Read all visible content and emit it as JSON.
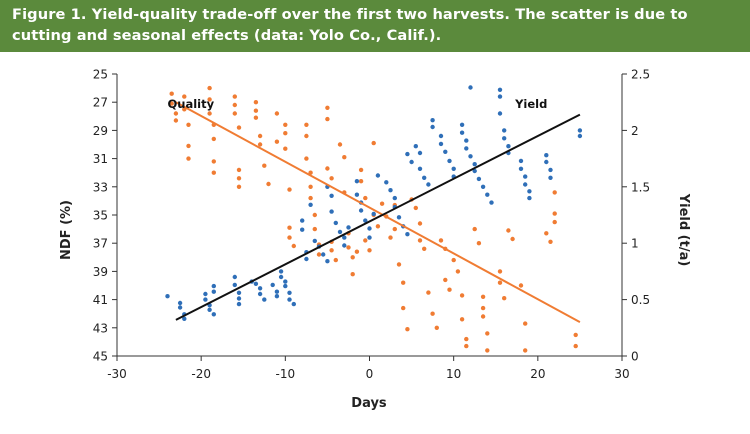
{
  "figure": {
    "title": "Figure 1. Yield-quality trade-off over the first two harvests. The scatter is due to cutting and seasonal effects (data: Yolo Co., Calif.).",
    "header_color": "#5b8a3c"
  },
  "chart_data": {
    "type": "scatter",
    "title": "Figure 1. Yield-quality trade-off over the first two harvests. The scatter is due to cutting and seasonal effects (data: Yolo Co., Calif.).",
    "xlabel": "Days",
    "ylabel_left": "NDF (%)",
    "ylabel_right": "Yield (t/a)",
    "xlim": [
      -30,
      30
    ],
    "ylim_left": [
      45,
      25
    ],
    "ylim_right": [
      0,
      2.5
    ],
    "xticks": [
      "-30",
      "-20",
      "-10",
      "0",
      "10",
      "20",
      "30"
    ],
    "yticks_left": [
      "25",
      "27",
      "29",
      "31",
      "33",
      "35",
      "37",
      "39",
      "41",
      "43",
      "45"
    ],
    "yticks_right": [
      "0",
      "0.5",
      "1",
      "1.5",
      "2",
      "2.5"
    ],
    "grid": false,
    "series": [
      {
        "name": "Quality",
        "axis": "left",
        "color": "#f07c33",
        "trend": {
          "x": [
            -23,
            25
          ],
          "y": [
            27.0,
            42.6
          ]
        },
        "points": [
          [
            -23.5,
            26.4
          ],
          [
            -23.5,
            27.1
          ],
          [
            -23.0,
            27.8
          ],
          [
            -23.0,
            28.3
          ],
          [
            -22.0,
            26.6
          ],
          [
            -22.0,
            27.5
          ],
          [
            -21.5,
            28.6
          ],
          [
            -21.5,
            30.1
          ],
          [
            -21.5,
            31.0
          ],
          [
            -19.0,
            26.0
          ],
          [
            -19.0,
            26.8
          ],
          [
            -19.0,
            27.8
          ],
          [
            -18.5,
            28.6
          ],
          [
            -18.5,
            29.6
          ],
          [
            -18.5,
            31.2
          ],
          [
            -18.5,
            32.0
          ],
          [
            -16.0,
            26.6
          ],
          [
            -16.0,
            27.2
          ],
          [
            -16.0,
            27.8
          ],
          [
            -15.5,
            28.8
          ],
          [
            -15.5,
            31.8
          ],
          [
            -15.5,
            32.4
          ],
          [
            -15.5,
            33.0
          ],
          [
            -13.5,
            27.0
          ],
          [
            -13.5,
            27.6
          ],
          [
            -13.5,
            28.1
          ],
          [
            -13.0,
            29.4
          ],
          [
            -13.0,
            30.0
          ],
          [
            -12.5,
            31.5
          ],
          [
            -12.0,
            32.8
          ],
          [
            -11.0,
            27.8
          ],
          [
            -11.0,
            29.8
          ],
          [
            -10.0,
            28.6
          ],
          [
            -10.0,
            29.2
          ],
          [
            -10.0,
            30.3
          ],
          [
            -9.5,
            33.2
          ],
          [
            -9.5,
            35.9
          ],
          [
            -9.5,
            36.6
          ],
          [
            -9.0,
            37.2
          ],
          [
            -7.5,
            28.6
          ],
          [
            -7.5,
            29.4
          ],
          [
            -7.5,
            31.0
          ],
          [
            -7.0,
            32.0
          ],
          [
            -7.0,
            33.0
          ],
          [
            -7.0,
            33.8
          ],
          [
            -6.5,
            35.0
          ],
          [
            -6.5,
            36.0
          ],
          [
            -6.0,
            37.1
          ],
          [
            -6.0,
            37.8
          ],
          [
            -5.0,
            27.4
          ],
          [
            -5.0,
            28.2
          ],
          [
            -5.0,
            31.7
          ],
          [
            -4.5,
            32.4
          ],
          [
            -4.5,
            36.9
          ],
          [
            -4.5,
            37.5
          ],
          [
            -4.0,
            38.2
          ],
          [
            -3.5,
            30.0
          ],
          [
            -3.0,
            30.9
          ],
          [
            -3.0,
            33.4
          ],
          [
            -2.5,
            36.3
          ],
          [
            -2.5,
            37.3
          ],
          [
            -2.0,
            38.0
          ],
          [
            -2.0,
            39.2
          ],
          [
            -1.5,
            37.6
          ],
          [
            -1.0,
            31.8
          ],
          [
            -1.0,
            32.6
          ],
          [
            -0.5,
            33.8
          ],
          [
            -0.5,
            36.8
          ],
          [
            0.0,
            37.5
          ],
          [
            0.5,
            29.9
          ],
          [
            0.5,
            35.0
          ],
          [
            1.0,
            35.8
          ],
          [
            1.5,
            34.2
          ],
          [
            2.0,
            35.1
          ],
          [
            2.5,
            36.6
          ],
          [
            3.0,
            34.3
          ],
          [
            3.0,
            36.0
          ],
          [
            3.5,
            38.5
          ],
          [
            4.0,
            39.8
          ],
          [
            4.0,
            41.6
          ],
          [
            4.5,
            43.1
          ],
          [
            5.0,
            33.9
          ],
          [
            5.5,
            34.5
          ],
          [
            6.0,
            35.6
          ],
          [
            6.0,
            36.8
          ],
          [
            6.5,
            37.4
          ],
          [
            7.0,
            40.5
          ],
          [
            7.5,
            42.0
          ],
          [
            8.0,
            43.0
          ],
          [
            8.5,
            36.8
          ],
          [
            9.0,
            37.4
          ],
          [
            9.0,
            39.6
          ],
          [
            9.5,
            40.3
          ],
          [
            10.0,
            38.2
          ],
          [
            10.5,
            39.0
          ],
          [
            11.0,
            40.7
          ],
          [
            11.0,
            42.4
          ],
          [
            11.5,
            43.8
          ],
          [
            11.5,
            44.3
          ],
          [
            12.5,
            36.0
          ],
          [
            13.0,
            37.0
          ],
          [
            13.5,
            40.8
          ],
          [
            13.5,
            41.6
          ],
          [
            13.5,
            42.2
          ],
          [
            14.0,
            43.4
          ],
          [
            14.0,
            44.6
          ],
          [
            15.5,
            39.0
          ],
          [
            15.5,
            39.8
          ],
          [
            16.0,
            40.9
          ],
          [
            16.5,
            36.1
          ],
          [
            17.0,
            36.7
          ],
          [
            18.0,
            40.0
          ],
          [
            18.5,
            42.7
          ],
          [
            18.5,
            44.6
          ],
          [
            21.0,
            36.3
          ],
          [
            21.5,
            36.9
          ],
          [
            22.0,
            34.9
          ],
          [
            22.0,
            35.5
          ],
          [
            22.0,
            33.4
          ],
          [
            24.5,
            43.5
          ],
          [
            24.5,
            44.3
          ]
        ]
      },
      {
        "name": "Yield",
        "axis": "right",
        "color": "#2f6fb8",
        "trend": {
          "x": [
            -23,
            25
          ],
          "y": [
            0.32,
            2.14
          ]
        },
        "points": [
          [
            -24.0,
            0.53
          ],
          [
            -22.5,
            0.47
          ],
          [
            -22.5,
            0.43
          ],
          [
            -22.0,
            0.37
          ],
          [
            -22.0,
            0.33
          ],
          [
            -19.5,
            0.55
          ],
          [
            -19.5,
            0.5
          ],
          [
            -19.0,
            0.45
          ],
          [
            -19.0,
            0.41
          ],
          [
            -18.5,
            0.62
          ],
          [
            -18.5,
            0.57
          ],
          [
            -18.5,
            0.37
          ],
          [
            -16.0,
            0.7
          ],
          [
            -16.0,
            0.63
          ],
          [
            -15.5,
            0.56
          ],
          [
            -15.5,
            0.51
          ],
          [
            -15.5,
            0.46
          ],
          [
            -14.0,
            0.66
          ],
          [
            -13.5,
            0.64
          ],
          [
            -13.0,
            0.6
          ],
          [
            -13.0,
            0.55
          ],
          [
            -12.5,
            0.5
          ],
          [
            -11.5,
            0.63
          ],
          [
            -11.0,
            0.57
          ],
          [
            -11.0,
            0.53
          ],
          [
            -10.5,
            0.75
          ],
          [
            -10.5,
            0.7
          ],
          [
            -10.0,
            0.66
          ],
          [
            -10.0,
            0.62
          ],
          [
            -9.5,
            0.56
          ],
          [
            -9.5,
            0.5
          ],
          [
            -9.0,
            0.46
          ],
          [
            -8.0,
            1.2
          ],
          [
            -8.0,
            1.12
          ],
          [
            -7.5,
            0.92
          ],
          [
            -7.5,
            0.86
          ],
          [
            -7.0,
            1.34
          ],
          [
            -6.5,
            1.02
          ],
          [
            -6.0,
            0.97
          ],
          [
            -5.5,
            0.9
          ],
          [
            -5.0,
            0.84
          ],
          [
            -5.0,
            1.5
          ],
          [
            -4.5,
            1.42
          ],
          [
            -4.5,
            1.28
          ],
          [
            -4.0,
            1.18
          ],
          [
            -3.5,
            1.1
          ],
          [
            -3.0,
            1.05
          ],
          [
            -3.0,
            0.98
          ],
          [
            -2.5,
            1.14
          ],
          [
            -1.5,
            1.55
          ],
          [
            -1.5,
            1.43
          ],
          [
            -1.0,
            1.36
          ],
          [
            -1.0,
            1.29
          ],
          [
            -0.5,
            1.2
          ],
          [
            0.0,
            1.13
          ],
          [
            0.0,
            1.05
          ],
          [
            0.5,
            1.26
          ],
          [
            1.0,
            1.6
          ],
          [
            2.0,
            1.54
          ],
          [
            2.5,
            1.47
          ],
          [
            3.0,
            1.4
          ],
          [
            3.0,
            1.32
          ],
          [
            3.5,
            1.23
          ],
          [
            4.0,
            1.15
          ],
          [
            4.5,
            1.08
          ],
          [
            4.5,
            1.79
          ],
          [
            5.0,
            1.72
          ],
          [
            5.5,
            1.86
          ],
          [
            6.0,
            1.8
          ],
          [
            6.0,
            1.66
          ],
          [
            6.5,
            1.58
          ],
          [
            7.0,
            1.52
          ],
          [
            7.5,
            2.09
          ],
          [
            7.5,
            2.03
          ],
          [
            8.5,
            1.95
          ],
          [
            8.5,
            1.88
          ],
          [
            9.0,
            1.81
          ],
          [
            9.5,
            1.73
          ],
          [
            10.0,
            1.66
          ],
          [
            10.0,
            1.59
          ],
          [
            11.0,
            2.05
          ],
          [
            11.0,
            1.98
          ],
          [
            11.5,
            1.91
          ],
          [
            11.5,
            1.84
          ],
          [
            12.0,
            1.77
          ],
          [
            12.0,
            2.38
          ],
          [
            12.5,
            1.7
          ],
          [
            12.5,
            1.64
          ],
          [
            13.0,
            1.57
          ],
          [
            13.5,
            1.5
          ],
          [
            14.0,
            1.43
          ],
          [
            14.5,
            1.36
          ],
          [
            15.5,
            2.36
          ],
          [
            15.5,
            2.3
          ],
          [
            15.5,
            2.15
          ],
          [
            16.0,
            2.0
          ],
          [
            16.0,
            1.93
          ],
          [
            16.5,
            1.86
          ],
          [
            16.5,
            1.8
          ],
          [
            18.0,
            1.73
          ],
          [
            18.0,
            1.66
          ],
          [
            18.5,
            1.59
          ],
          [
            18.5,
            1.52
          ],
          [
            19.0,
            1.46
          ],
          [
            19.0,
            1.4
          ],
          [
            21.0,
            1.78
          ],
          [
            21.0,
            1.72
          ],
          [
            21.5,
            1.65
          ],
          [
            21.5,
            1.58
          ],
          [
            25.0,
            2.0
          ],
          [
            25.0,
            1.95
          ]
        ]
      }
    ],
    "annotations": [
      {
        "text": "Quality",
        "x": -24,
        "y_left": 27.4
      },
      {
        "text": "Yield",
        "x": 17.3,
        "y_left": 27.4
      }
    ]
  }
}
